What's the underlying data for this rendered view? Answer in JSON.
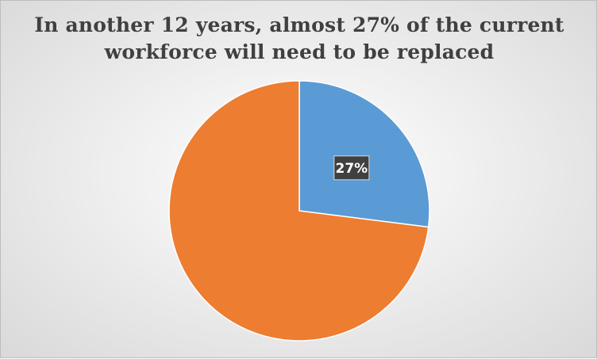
{
  "chart_data": {
    "type": "pie",
    "title": "In another 12 years, almost 27% of the current workforce will need to be replaced",
    "title_lines": [
      "In another 12 years, almost 27% of the current",
      "workforce will need to be replaced"
    ],
    "slices": [
      {
        "value": 27,
        "label": "27%",
        "color": "#5b9bd5",
        "show_label": true
      },
      {
        "value": 73,
        "label": "",
        "color": "#ed7d31",
        "show_label": false
      }
    ],
    "start_angle_deg": 0,
    "direction": "clockwise",
    "data_label_style": {
      "background": "#404040",
      "text_color": "#ffffff"
    },
    "legend": "none"
  }
}
